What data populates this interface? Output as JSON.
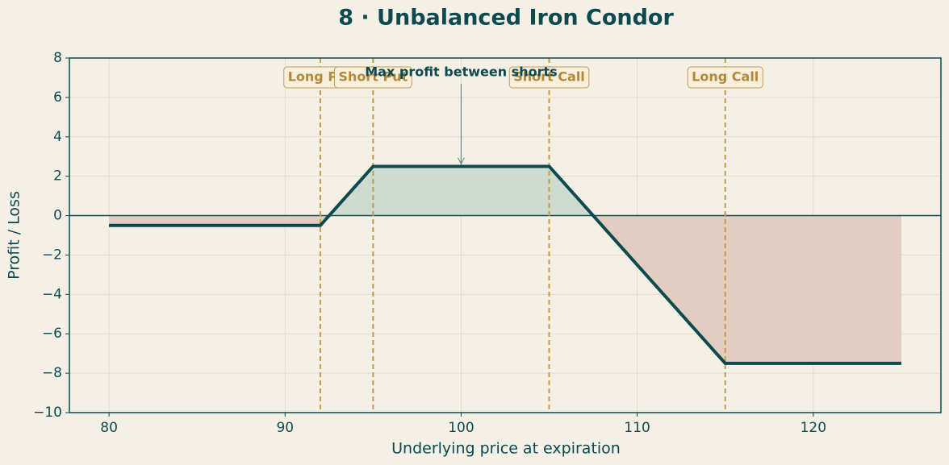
{
  "chart_data": {
    "type": "line",
    "title": "8 · Unbalanced Iron Condor",
    "xlabel": "Underlying price at expiration",
    "ylabel": "Profit / Loss",
    "x": [
      80,
      92,
      95,
      105,
      115,
      125
    ],
    "values": [
      -0.5,
      -0.5,
      2.5,
      2.5,
      -7.5,
      -7.5
    ],
    "color": "#0d4a4f",
    "profit_color": "#cddbd0",
    "loss_color": "#e3cdc0",
    "xlim": [
      77.75,
      127.25
    ],
    "ylim": [
      -10,
      8
    ],
    "xticks": [
      80,
      90,
      100,
      110,
      120
    ],
    "yticks": [
      {
        "value": -10,
        "label": "−10"
      },
      {
        "value": -8,
        "label": "−8"
      },
      {
        "value": -6,
        "label": "−6"
      },
      {
        "value": -4,
        "label": "−4"
      },
      {
        "value": -2,
        "label": "−2"
      },
      0,
      2,
      4,
      6,
      8
    ],
    "grid": true,
    "hline": 0,
    "vlines": [
      {
        "x": 92,
        "label": "Long Put"
      },
      {
        "x": 95,
        "label": "Short Put"
      },
      {
        "x": 105,
        "label": "Short Call"
      },
      {
        "x": 115,
        "label": "Long Call"
      }
    ],
    "vline_color": "#c89b4c",
    "annotation": {
      "text": "Max profit between shorts",
      "x": 100,
      "y": 2.5
    }
  }
}
